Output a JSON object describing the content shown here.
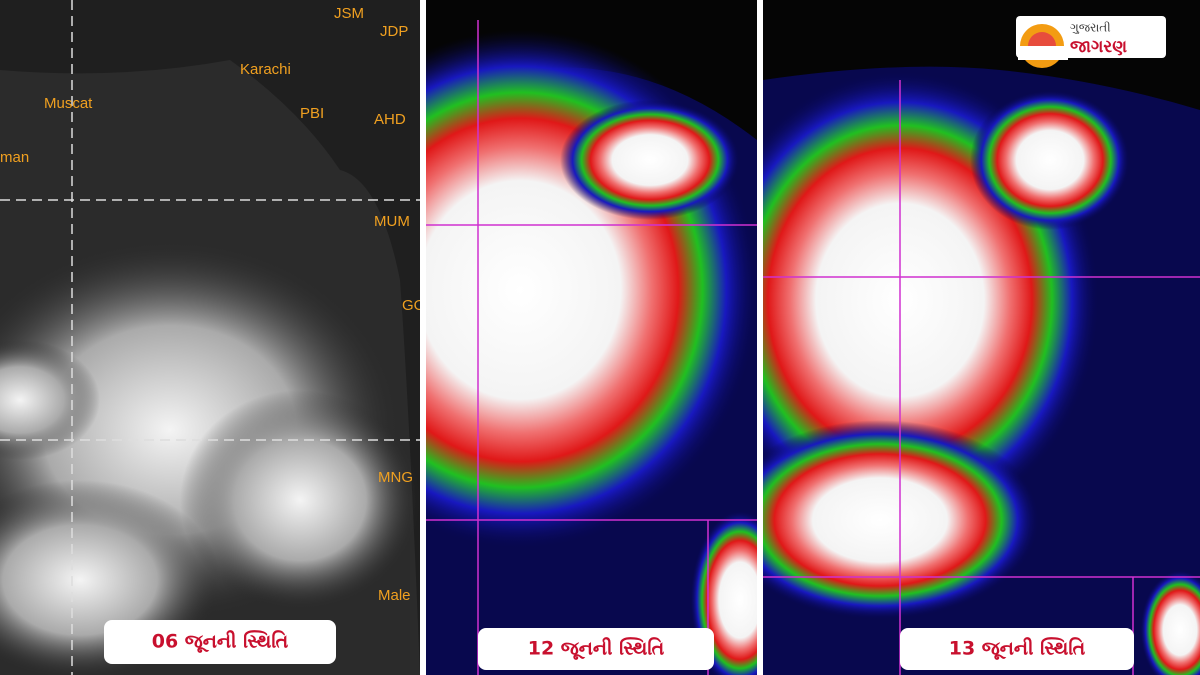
{
  "logo": {
    "line1": "ગુજરાતી",
    "line2": "જાગરણ"
  },
  "panels": [
    {
      "caption": "06 જૂનની સ્થિતિ",
      "map_labels": [
        "JSM",
        "JDP",
        "Karachi",
        "Muscat",
        "PBI",
        "AHD",
        "man",
        "MUM",
        "GOA",
        "MNG",
        "Male"
      ]
    },
    {
      "caption": "12 જૂનની સ્થિતિ"
    },
    {
      "caption": "13 જૂનની સ્થિતિ"
    }
  ]
}
